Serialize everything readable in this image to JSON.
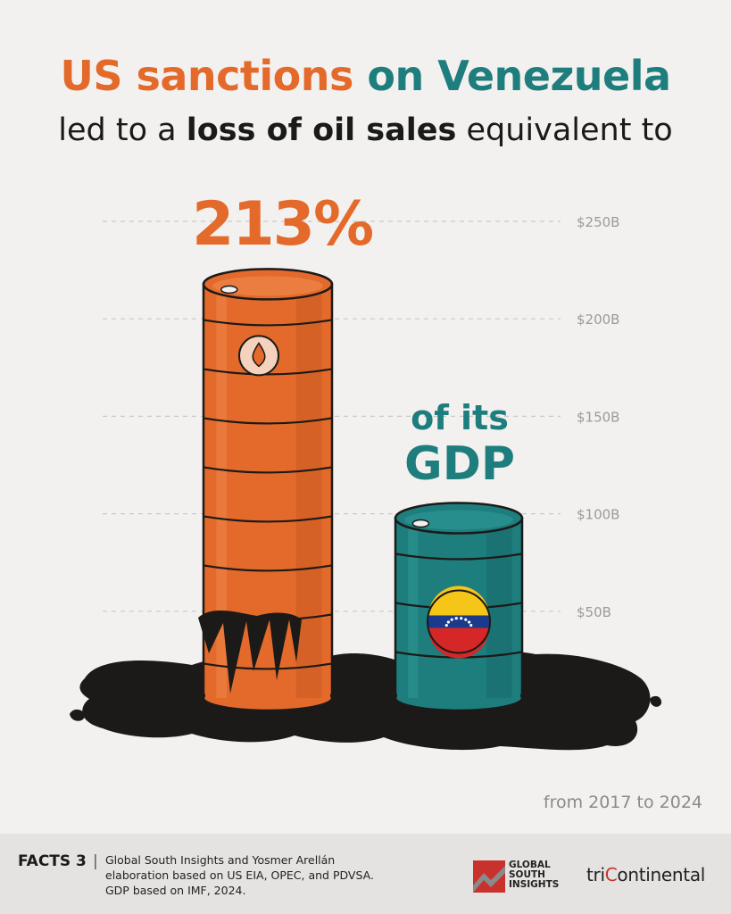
{
  "title": {
    "line1_part1": "US sanctions",
    "line1_part2": "on Venezuela",
    "line2_part1": "led to a",
    "line2_bold": "loss of oil sales",
    "line2_part2": "equivalent to"
  },
  "callouts": {
    "percentage": "213%",
    "of_its": "of its",
    "gdp": "GDP"
  },
  "period": "from 2017 to 2024",
  "footer": {
    "facts_label": "FACTS 3",
    "separator": "|",
    "source_line1": "Global South Insights and Yosmer Arellán",
    "source_line2": "elaboration based on US EIA, OPEC, and PDVSA.",
    "source_line3": "GDP based on IMF, 2024.",
    "logo1_line1": "GLOBAL",
    "logo1_line2": "SOUTH",
    "logo1_line3": "INSIGHTS",
    "logo2_part1": "tri",
    "logo2_part2": "C",
    "logo2_part3": "ontinental"
  },
  "colors": {
    "orange": "#e36a2b",
    "teal": "#1e7d7d",
    "oil": "#1c1a18",
    "background": "#f2f1ef"
  },
  "chart_data": {
    "type": "bar",
    "categories": [
      "Loss of oil sales",
      "GDP"
    ],
    "values": [
      226,
      106
    ],
    "ylim": [
      0,
      250
    ],
    "yticks": [
      {
        "value": 50,
        "label": "$50B"
      },
      {
        "value": 100,
        "label": "$100B"
      },
      {
        "value": 150,
        "label": "$150B"
      },
      {
        "value": 200,
        "label": "$200B"
      },
      {
        "value": 250,
        "label": "$250B"
      }
    ],
    "grid": true,
    "gridline_style": "dashed"
  }
}
